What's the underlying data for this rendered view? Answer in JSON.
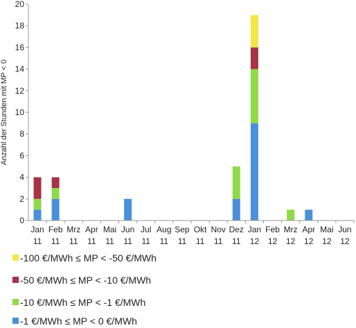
{
  "chart_data": {
    "type": "bar",
    "stacked": true,
    "ylabel": "Anzahl der Stunden mit MP < 0",
    "xlabel": "",
    "ylim": [
      0,
      20
    ],
    "yticks": [
      0,
      2,
      4,
      6,
      8,
      10,
      12,
      14,
      16,
      18,
      20
    ],
    "grid": false,
    "legend_position": "bottom",
    "categories": [
      [
        "Jan",
        "11"
      ],
      [
        "Feb",
        "11"
      ],
      [
        "Mrz",
        "11"
      ],
      [
        "Apr",
        "11"
      ],
      [
        "Mai",
        "11"
      ],
      [
        "Jun",
        "11"
      ],
      [
        "Jul",
        "11"
      ],
      [
        "Aug",
        "11"
      ],
      [
        "Sep",
        "11"
      ],
      [
        "Okt",
        "11"
      ],
      [
        "Nov",
        "11"
      ],
      [
        "Dez",
        "11"
      ],
      [
        "Jan",
        "12"
      ],
      [
        "Feb",
        "12"
      ],
      [
        "Mrz",
        "12"
      ],
      [
        "Apr",
        "12"
      ],
      [
        "Mai",
        "12"
      ],
      [
        "Jun",
        "12"
      ]
    ],
    "series": [
      {
        "name": "-1 €/MWh ≤ MP < 0 €/MWh",
        "color": "#4a90d9",
        "values": [
          1,
          2,
          0,
          0,
          0,
          2,
          0,
          0,
          0,
          0,
          0,
          2,
          9,
          0,
          0,
          1,
          0,
          0
        ]
      },
      {
        "name": "-10 €/MWh ≤ MP < -1 €/MWh",
        "color": "#8fd94a",
        "values": [
          1,
          1,
          0,
          0,
          0,
          0,
          0,
          0,
          0,
          0,
          0,
          3,
          5,
          0,
          1,
          0,
          0,
          0
        ]
      },
      {
        "name": "-50 €/MWh ≤ MP < -10 €/MWh",
        "color": "#a83246",
        "values": [
          2,
          1,
          0,
          0,
          0,
          0,
          0,
          0,
          0,
          0,
          0,
          0,
          2,
          0,
          0,
          0,
          0,
          0
        ]
      },
      {
        "name": "-100 €/MWh ≤ MP < -50 €/MWh",
        "color": "#f5e44a",
        "values": [
          0,
          0,
          0,
          0,
          0,
          0,
          0,
          0,
          0,
          0,
          0,
          0,
          3,
          0,
          0,
          0,
          0,
          0
        ]
      }
    ]
  },
  "legend": [
    {
      "label": "-100 €/MWh ≤ MP < -50 €/MWh",
      "color": "#f5e44a"
    },
    {
      "label": "-50 €/MWh ≤ MP < -10 €/MWh",
      "color": "#a83246"
    },
    {
      "label": "-10 €/MWh ≤ MP < -1 €/MWh",
      "color": "#8fd94a"
    },
    {
      "label": "-1 €/MWh ≤ MP < 0 €/MWh",
      "color": "#4a90d9"
    }
  ]
}
